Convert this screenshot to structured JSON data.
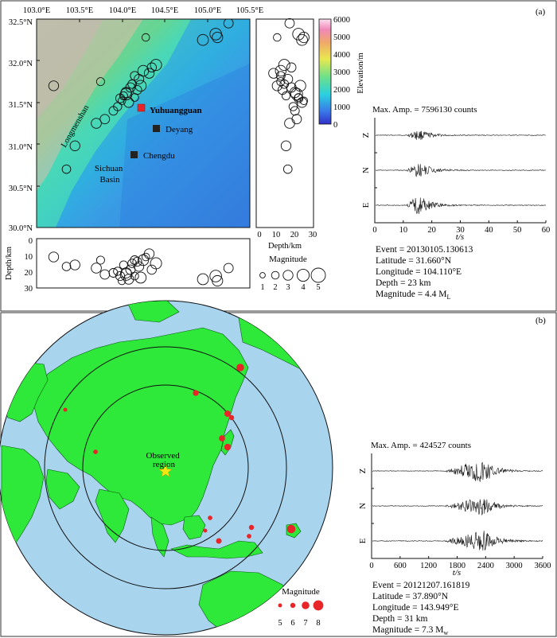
{
  "panel_a": {
    "label": "(a)",
    "map": {
      "lon_ticks": [
        "103.0°E",
        "103.5°E",
        "104.0°E",
        "104.5°E",
        "105.0°E",
        "105.5°E"
      ],
      "lat_ticks": [
        "32.5°N",
        "32.0°N",
        "31.5°N",
        "31.0°N",
        "30.5°N",
        "30.0°N"
      ],
      "place_labels": {
        "yuhuangguan": "Yuhuangguan",
        "deyang": "Deyang",
        "chengdu": "Chengdu",
        "sichuan_basin_line1": "Sichuan",
        "sichuan_basin_line2": "Basin",
        "longmenshan": "Longmenshan"
      },
      "colorbar": {
        "label": "Elevation/m",
        "ticks": [
          "6000",
          "5000",
          "4000",
          "3000",
          "2000",
          "1000",
          "0"
        ]
      }
    },
    "depth_side": {
      "xlabel": "Depth/km",
      "ticks": [
        "0",
        "10",
        "20",
        "30"
      ]
    },
    "depth_bottom": {
      "ylabel": "Depth/km",
      "ticks": [
        "0",
        "10",
        "20",
        "30"
      ]
    },
    "magnitude_legend": {
      "title": "Magnitude",
      "values": [
        "1",
        "2",
        "3",
        "4",
        "5"
      ]
    },
    "waveform": {
      "max_amp": "Max. Amp. = 7596130 counts",
      "channels": [
        "Z",
        "N",
        "E"
      ],
      "xticks": [
        "0",
        "10",
        "20",
        "30",
        "40",
        "50",
        "60"
      ],
      "xlabel": "t/s",
      "info": [
        "Event = 20130105.130613",
        "Latitude = 31.660°N",
        "Longitude = 104.110°E",
        "Depth = 23 km",
        "Magnitude = 4.4 M"
      ],
      "magnitude_subscript": "L"
    }
  },
  "panel_b": {
    "label": "(b)",
    "observed_region_line1": "Observed",
    "observed_region_line2": "region",
    "magnitude_legend": {
      "title": "Magnitude",
      "values": [
        "5",
        "6",
        "7",
        "8"
      ]
    },
    "waveform": {
      "max_amp": "Max. Amp. = 424527 counts",
      "channels": [
        "Z",
        "N",
        "E"
      ],
      "xticks": [
        "0",
        "600",
        "1200",
        "1800",
        "2400",
        "3000",
        "3600"
      ],
      "xlabel": "t/s",
      "info": [
        "Event = 20121207.161819",
        "Latitude = 37.890°N",
        "Longitude = 143.949°E",
        "Depth = 31 km",
        "Magnitude = 7.3 M"
      ],
      "magnitude_subscript": "w"
    }
  },
  "colors": {
    "ocean": "#a8d4ee",
    "land": "#2ee83a",
    "quake_b": "#e8262a",
    "star": "#f4e612"
  },
  "events_a": [
    {
      "lon": 104.28,
      "lat": 32.28,
      "d": 10,
      "m": 2.0
    },
    {
      "lon": 104.15,
      "lat": 31.82,
      "d": 12,
      "m": 2.5
    },
    {
      "lon": 104.32,
      "lat": 31.85,
      "d": 8,
      "m": 3.0
    },
    {
      "lon": 104.1,
      "lat": 31.68,
      "d": 18,
      "m": 2.8
    },
    {
      "lon": 104.05,
      "lat": 31.62,
      "d": 20,
      "m": 3.2
    },
    {
      "lon": 104.02,
      "lat": 31.58,
      "d": 15,
      "m": 2.2
    },
    {
      "lon": 103.98,
      "lat": 31.55,
      "d": 22,
      "m": 2.6
    },
    {
      "lon": 104.12,
      "lat": 31.72,
      "d": 14,
      "m": 2.4
    },
    {
      "lon": 104.2,
      "lat": 31.78,
      "d": 16,
      "m": 2.9
    },
    {
      "lon": 104.25,
      "lat": 31.88,
      "d": 12,
      "m": 3.4
    },
    {
      "lon": 104.35,
      "lat": 31.92,
      "d": 18,
      "m": 2.7
    },
    {
      "lon": 104.08,
      "lat": 31.5,
      "d": 24,
      "m": 3.0
    },
    {
      "lon": 103.9,
      "lat": 31.4,
      "d": 20,
      "m": 2.5
    },
    {
      "lon": 103.95,
      "lat": 31.45,
      "d": 19,
      "m": 2.3
    },
    {
      "lon": 103.8,
      "lat": 31.3,
      "d": 21,
      "m": 2.8
    },
    {
      "lon": 103.7,
      "lat": 31.25,
      "d": 17,
      "m": 3.1
    },
    {
      "lon": 104.18,
      "lat": 31.65,
      "d": 13,
      "m": 2.6
    },
    {
      "lon": 104.22,
      "lat": 31.7,
      "d": 23,
      "m": 3.5
    },
    {
      "lon": 104.4,
      "lat": 31.95,
      "d": 14,
      "m": 3.6
    },
    {
      "lon": 103.45,
      "lat": 30.98,
      "d": 15,
      "m": 3.0
    },
    {
      "lon": 103.35,
      "lat": 30.7,
      "d": 16,
      "m": 2.4
    },
    {
      "lon": 103.2,
      "lat": 31.7,
      "d": 10,
      "m": 3.0
    },
    {
      "lon": 103.75,
      "lat": 31.75,
      "d": 12,
      "m": 2.2
    },
    {
      "lon": 104.95,
      "lat": 32.25,
      "d": 24,
      "m": 3.5
    },
    {
      "lon": 105.1,
      "lat": 32.32,
      "d": 22,
      "m": 3.8
    },
    {
      "lon": 105.12,
      "lat": 32.28,
      "d": 25,
      "m": 3.3
    },
    {
      "lon": 105.25,
      "lat": 32.45,
      "d": 17,
      "m": 2.8
    },
    {
      "lon": 104.05,
      "lat": 31.6,
      "d": 21,
      "m": 3.8
    },
    {
      "lon": 104.0,
      "lat": 31.52,
      "d": 25,
      "m": 2.0
    },
    {
      "lon": 104.15,
      "lat": 31.56,
      "d": 22,
      "m": 2.1
    }
  ],
  "events_b": [
    {
      "x": 302,
      "y": 462,
      "m": 7.0
    },
    {
      "x": 246,
      "y": 494,
      "m": 6.3
    },
    {
      "x": 82,
      "y": 515,
      "m": 5.6
    },
    {
      "x": 120,
      "y": 568,
      "m": 5.8
    },
    {
      "x": 286,
      "y": 520,
      "m": 6.5
    },
    {
      "x": 291,
      "y": 525,
      "m": 6.0
    },
    {
      "x": 279,
      "y": 551,
      "m": 6.4
    },
    {
      "x": 286,
      "y": 562,
      "m": 6.6
    },
    {
      "x": 264,
      "y": 651,
      "m": 5.8
    },
    {
      "x": 258,
      "y": 667,
      "m": 5.5
    },
    {
      "x": 275,
      "y": 680,
      "m": 6.2
    },
    {
      "x": 316,
      "y": 663,
      "m": 6.0
    },
    {
      "x": 313,
      "y": 674,
      "m": 5.8
    },
    {
      "x": 366,
      "y": 665,
      "m": 7.3
    }
  ]
}
